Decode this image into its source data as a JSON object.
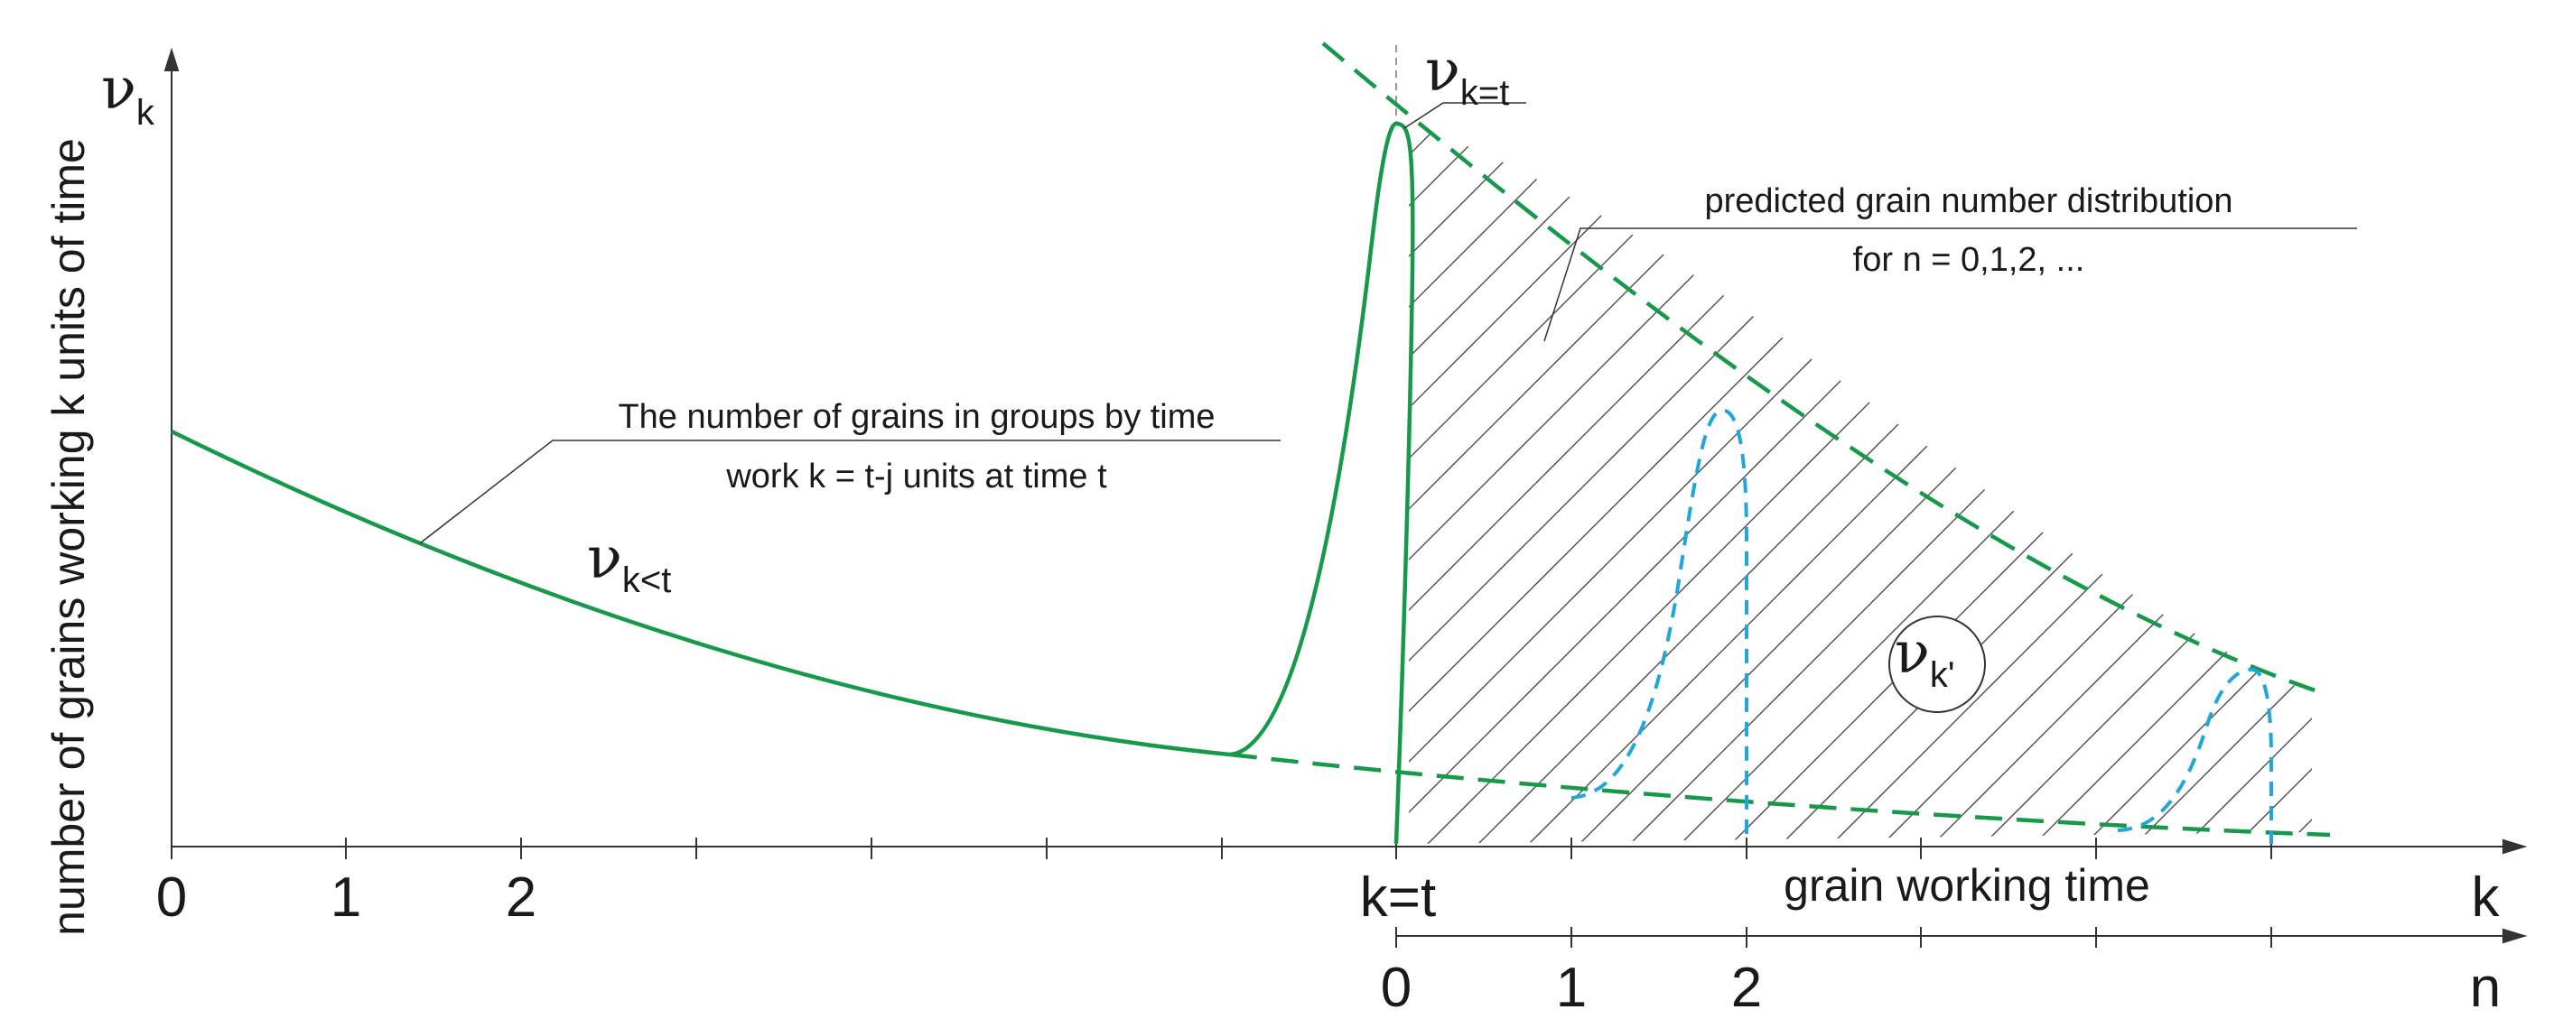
{
  "y_axis": {
    "label": "number of grains working k units of time",
    "symbol_main": "ν",
    "symbol_sub": "k"
  },
  "x_axis_k": {
    "ticks_left": [
      "0",
      "1",
      "2"
    ],
    "tick_kt": "k=t",
    "end_label": "k",
    "caption": "grain working time"
  },
  "x_axis_n": {
    "ticks": [
      "0",
      "1",
      "2"
    ],
    "end_label": "n"
  },
  "annotations": {
    "curve_label_main": "ν",
    "curve_label_sub": "k<t",
    "peak_label_main": "ν",
    "peak_label_sub": "k=t",
    "circle_label_main": "ν",
    "circle_label_sub": "k'",
    "callout_grains_line1": "The number of grains in groups by time",
    "callout_grains_line2": "work k = t-j units at time t",
    "callout_predicted_line1": "predicted grain number distribution",
    "callout_predicted_line2": "for n = 0,1,2, ..."
  },
  "colors": {
    "green": "#17994a",
    "blue": "#1fa6dc",
    "axis": "#333333",
    "hatch": "#333333"
  }
}
